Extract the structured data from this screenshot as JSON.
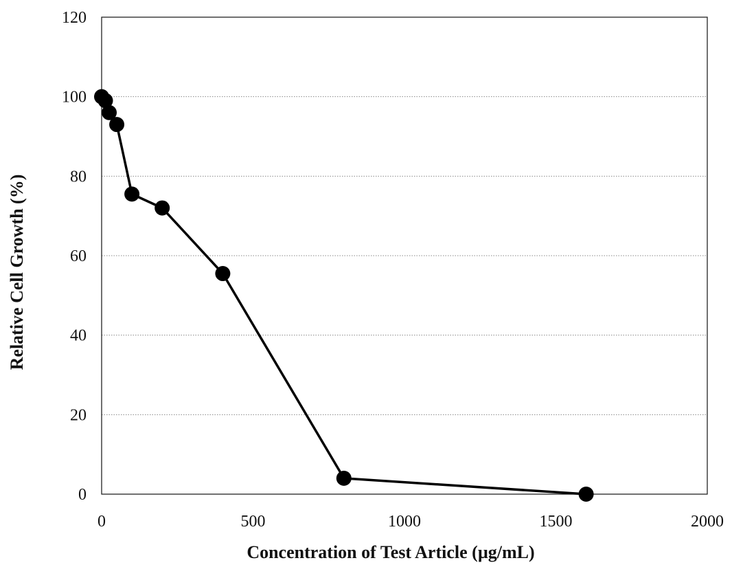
{
  "chart_data": {
    "type": "line",
    "title": "",
    "xlabel": "Concentration of Test Article (µg/mL)",
    "ylabel": "Relative Cell Growth (%)",
    "xlim": [
      0,
      2000
    ],
    "ylim": [
      0,
      120
    ],
    "x_ticks": [
      "0",
      "500",
      "1000",
      "1500",
      "2000"
    ],
    "y_ticks": [
      "0",
      "20",
      "40",
      "60",
      "80",
      "100",
      "120"
    ],
    "grid": "horizontal dotted",
    "legend": "none",
    "series": [
      {
        "color": "#000000",
        "marker": "filled-circle",
        "x": [
          0,
          12.5,
          25,
          50,
          100,
          200,
          400,
          800,
          1600
        ],
        "y": [
          100,
          99,
          96,
          93,
          75.5,
          72,
          55.5,
          4,
          0
        ]
      }
    ]
  }
}
